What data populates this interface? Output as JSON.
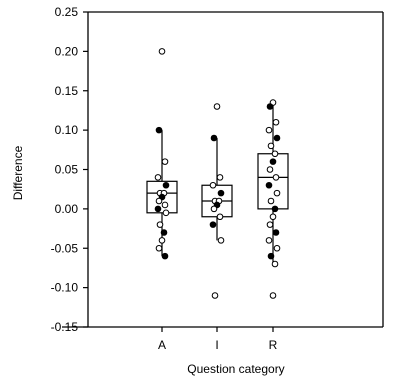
{
  "chart_data": {
    "type": "box",
    "title": "",
    "xlabel": "Question category",
    "ylabel": "Difference",
    "ylim": [
      -0.15,
      0.25
    ],
    "yticks": [
      -0.15,
      -0.1,
      -0.05,
      0.0,
      0.05,
      0.1,
      0.15,
      0.2,
      0.25
    ],
    "ytick_labels": [
      "-0.15",
      "-0.10",
      "-0.05",
      "0.00",
      "0.05",
      "0.10",
      "0.15",
      "0.20",
      "0.25"
    ],
    "categories": [
      "A",
      "I",
      "R"
    ],
    "boxes": [
      {
        "category": "A",
        "q1": -0.005,
        "median": 0.02,
        "q3": 0.035,
        "whisker_low": -0.06,
        "whisker_high": 0.1
      },
      {
        "category": "I",
        "q1": -0.01,
        "median": 0.01,
        "q3": 0.03,
        "whisker_low": -0.04,
        "whisker_high": 0.09
      },
      {
        "category": "R",
        "q1": 0.0,
        "median": 0.04,
        "q3": 0.07,
        "whisker_low": -0.07,
        "whisker_high": 0.135
      }
    ],
    "points": [
      {
        "category": "A",
        "values": [
          0.2,
          0.1,
          0.06,
          0.04,
          0.03,
          0.02,
          0.02,
          0.015,
          0.01,
          0.005,
          0.0,
          -0.005,
          -0.02,
          -0.03,
          -0.04,
          -0.05,
          -0.06
        ]
      },
      {
        "category": "I",
        "values": [
          0.13,
          0.09,
          0.04,
          0.03,
          0.02,
          0.01,
          0.01,
          0.005,
          0.0,
          -0.01,
          -0.02,
          -0.04,
          -0.11
        ]
      },
      {
        "category": "R",
        "values": [
          0.135,
          0.13,
          0.11,
          0.1,
          0.09,
          0.08,
          0.07,
          0.06,
          0.05,
          0.04,
          0.03,
          0.02,
          0.01,
          0.0,
          -0.01,
          -0.02,
          -0.03,
          -0.04,
          -0.05,
          -0.06,
          -0.07,
          -0.11
        ]
      }
    ],
    "grid": false,
    "legend": "none"
  }
}
